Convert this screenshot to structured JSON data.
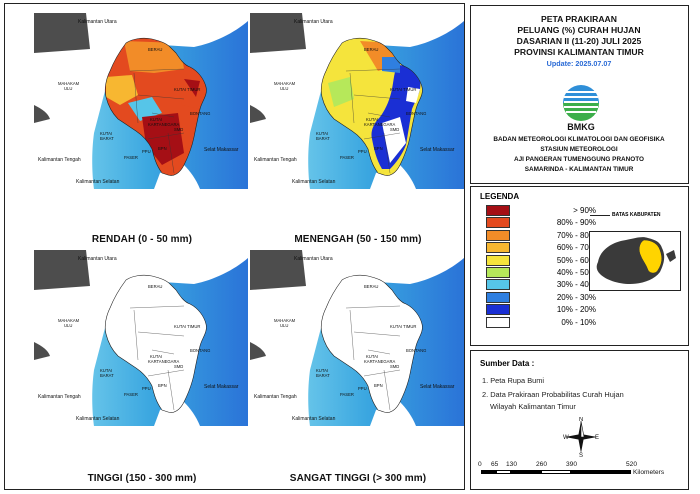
{
  "panels": [
    {
      "caption": "RENDAH (0 - 50 mm)",
      "scheme": "low"
    },
    {
      "caption": "MENENGAH (50 - 150 mm)",
      "scheme": "mid"
    },
    {
      "caption": "TINGGI (150 - 300 mm)",
      "scheme": "white"
    },
    {
      "caption": "SANGAT TINGGI (> 300 mm)",
      "scheme": "white"
    }
  ],
  "map_labels": {
    "kaltara": "Kalimantan Utara",
    "kalteng": "Kalimantan Tengah",
    "kalsel": "Kalimantan Selatan",
    "selat": "Selat Makassar",
    "berau": "BERAU",
    "kutim": "KUTAI TIMUR",
    "mahulu1": "MAHAKAM",
    "mahulu2": "ULU",
    "bontang": "BONTANG",
    "kubar1": "KUTAI",
    "kubar2": "BARAT",
    "kukar1": "KUTAI",
    "kukar2": "KARTANEGARA",
    "smd": "SMD",
    "bpn": "BPN",
    "ppu": "PPU",
    "paser": "PASER"
  },
  "title": {
    "line1": "PETA PRAKIRAAN",
    "line2": "PELUANG (%) CURAH HUJAN",
    "line3": "DASARIAN II (11-20) JULI 2025",
    "line4": "PROVINSI KALIMANTAN TIMUR",
    "update": "Update: 2025.07.07"
  },
  "logo": {
    "text": "BMKG"
  },
  "org": {
    "line1": "BADAN METEOROLOGI KLIMATOLOGI DAN GEOFISIKA",
    "line2": "STASIUN METEOROLOGI",
    "line3": "AJI PANGERAN TUMENGGUNG PRANOTO",
    "line4": "SAMARINDA - KALIMANTAN TIMUR"
  },
  "legend": {
    "title": "LEGENDA",
    "boundary_label": "BATAS KABUPATEN",
    "items": [
      {
        "label": "> 90%",
        "color": "#a50f15"
      },
      {
        "label": "80% - 90%",
        "color": "#e34a1f"
      },
      {
        "label": "70% - 80%",
        "color": "#f28c28"
      },
      {
        "label": "60% - 70%",
        "color": "#f7b731"
      },
      {
        "label": "50% - 60%",
        "color": "#f5e43c"
      },
      {
        "label": "40% - 50%",
        "color": "#b6e85a"
      },
      {
        "label": "30% - 40%",
        "color": "#56c5e8"
      },
      {
        "label": "20% - 30%",
        "color": "#2f7fe0"
      },
      {
        "label": "10% - 20%",
        "color": "#1a2fd4"
      },
      {
        "label": "0% - 10%",
        "color": "#ffffff"
      }
    ]
  },
  "sources": {
    "title": "Sumber Data :",
    "item1": "1. Peta Rupa Bumi",
    "item2": "2. Data Prakiraan Probabilitas Curah Hujan",
    "item2b": "Wilayah Kalimantan Timur"
  },
  "compass": {
    "n": "N",
    "s": "S",
    "e": "E",
    "w": "W"
  },
  "scale": {
    "ticks": [
      "0",
      "65",
      "130",
      "260",
      "390",
      "520"
    ],
    "unit": "Kilometers"
  }
}
